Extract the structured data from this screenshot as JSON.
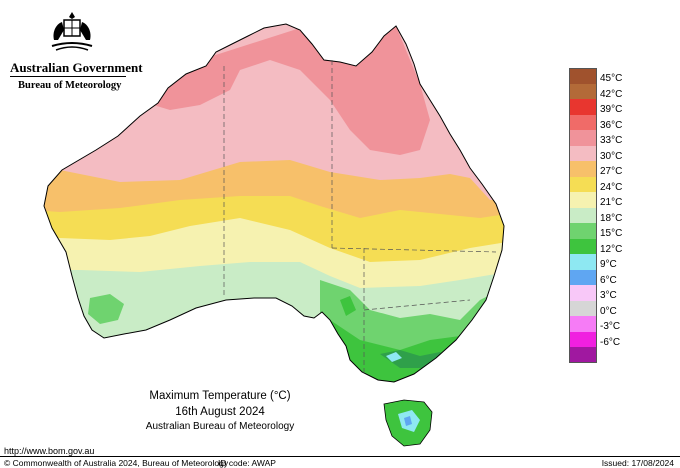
{
  "header": {
    "government": "Australian Government",
    "bureau": "Bureau of Meteorology",
    "crest_icon": "coat-of-arms-icon"
  },
  "legend": {
    "items": [
      {
        "label": "45°C",
        "color": "#a0522d"
      },
      {
        "label": "42°C",
        "color": "#b36a38"
      },
      {
        "label": "39°C",
        "color": "#e8362f"
      },
      {
        "label": "36°C",
        "color": "#f06b68"
      },
      {
        "label": "33°C",
        "color": "#f0939a"
      },
      {
        "label": "30°C",
        "color": "#f4bcc2"
      },
      {
        "label": "27°C",
        "color": "#f7c06a"
      },
      {
        "label": "24°C",
        "color": "#f5dd54"
      },
      {
        "label": "21°C",
        "color": "#f6f2b0"
      },
      {
        "label": "18°C",
        "color": "#c9ecc6"
      },
      {
        "label": "15°C",
        "color": "#6fd36f"
      },
      {
        "label": "12°C",
        "color": "#3ec43e"
      },
      {
        "label": "9°C",
        "color": "#8ee8f2"
      },
      {
        "label": "6°C",
        "color": "#5fa6f2"
      },
      {
        "label": "3°C",
        "color": "#f8c8f8"
      },
      {
        "label": "0°C",
        "color": "#d6d6d6"
      },
      {
        "label": "-3°C",
        "color": "#f67cf6"
      },
      {
        "label": "-6°C",
        "color": "#f020e0"
      },
      {
        "label": "",
        "color": "#a018a0"
      }
    ]
  },
  "caption": {
    "title": "Maximum Temperature (°C)",
    "date": "16th August 2024",
    "organisation": "Australian Bureau of Meteorology"
  },
  "footer": {
    "url": "http://www.bom.gov.au",
    "copyright": "© Commonwealth of Australia 2024, Bureau of Meteorology",
    "id_code": "ID code: AWAP",
    "issued": "Issued: 17/08/2024"
  }
}
